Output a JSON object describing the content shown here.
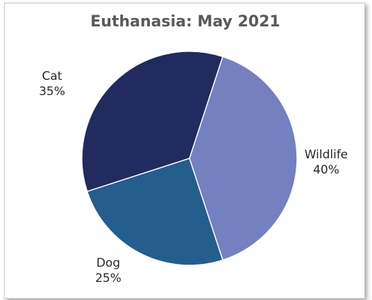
{
  "chart_data": {
    "type": "pie",
    "title": "Euthanasia: May 2021",
    "slices": [
      {
        "label": "Wildlife",
        "value": 40,
        "value_label": "40%",
        "color": "#7480c0"
      },
      {
        "label": "Dog",
        "value": 25,
        "value_label": "25%",
        "color": "#235e8f"
      },
      {
        "label": "Cat",
        "value": 35,
        "value_label": "35%",
        "color": "#222b60"
      }
    ],
    "start_angle_deg": 18,
    "direction": "clockwise",
    "legend": "none"
  }
}
